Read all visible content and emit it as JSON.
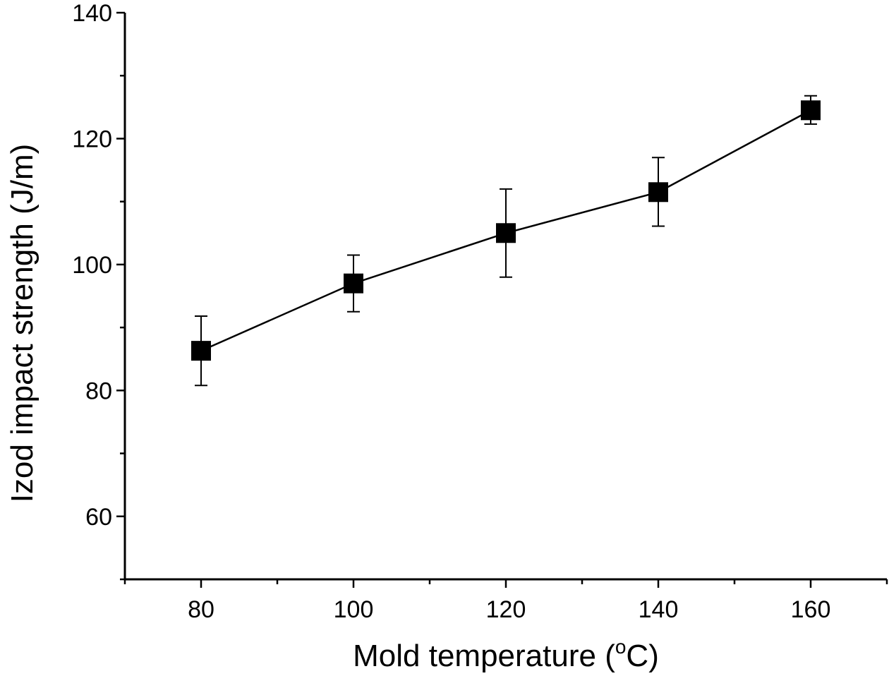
{
  "chart_data": {
    "type": "scatter",
    "title": "",
    "xlabel": "Mold temperature (",
    "xlabel_superscript": "o",
    "xlabel_suffix": "C)",
    "ylabel": "Izod impact strength (J/m)",
    "xlim": [
      70,
      170
    ],
    "ylim": [
      50,
      140
    ],
    "x_ticks": [
      80,
      100,
      120,
      140,
      160
    ],
    "y_ticks": [
      60,
      80,
      100,
      120,
      140
    ],
    "x_minor_step": 10,
    "y_minor_step": 10,
    "grid": false,
    "series": [
      {
        "name": "Izod impact strength",
        "marker": "square",
        "line": true,
        "x": [
          80,
          100,
          120,
          140,
          160
        ],
        "y": [
          86.3,
          97.0,
          105.0,
          111.5,
          124.5
        ],
        "error_low": [
          80.8,
          92.5,
          98.0,
          106.1,
          122.3
        ],
        "error_high": [
          91.8,
          101.5,
          112.0,
          117.0,
          126.8
        ]
      }
    ]
  }
}
